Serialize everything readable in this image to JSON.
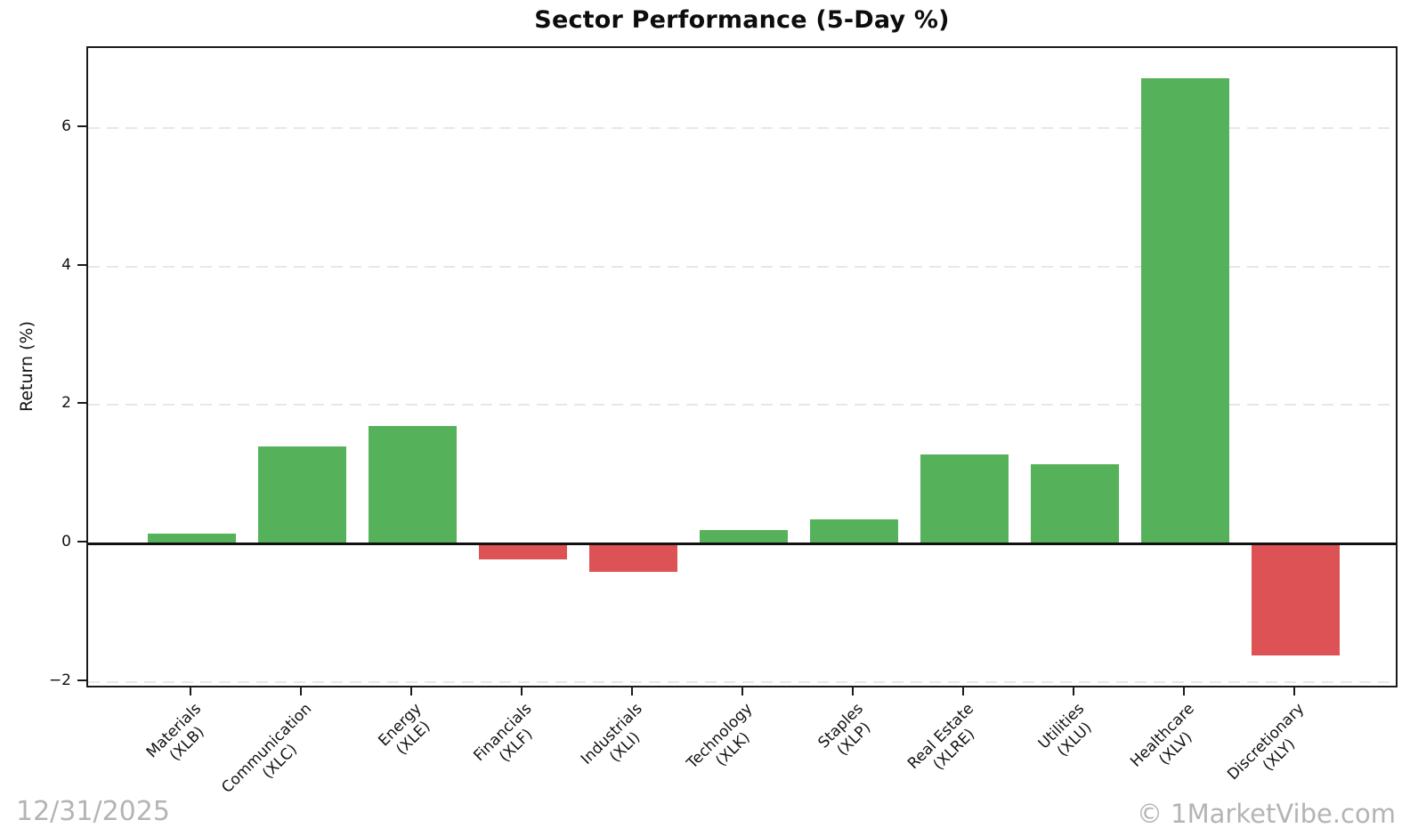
{
  "title": "Sector Performance (5-Day %)",
  "footer": {
    "date": "12/31/2025",
    "watermark": "© 1MarketVibe.com"
  },
  "chart_data": {
    "type": "bar",
    "title": "Sector Performance (5-Day %)",
    "xlabel": "",
    "ylabel": "Return (%)",
    "categories": [
      "Materials\n(XLB)",
      "Communication\n(XLC)",
      "Energy\n(XLE)",
      "Financials\n(XLF)",
      "Industrials\n(XLI)",
      "Technology\n(XLK)",
      "Staples\n(XLP)",
      "Real Estate\n(XLRE)",
      "Utilities\n(XLU)",
      "Healthcare\n(XLV)",
      "Discretionary\n(XLY)"
    ],
    "values": [
      0.15,
      1.4,
      1.7,
      -0.22,
      -0.4,
      0.2,
      0.35,
      1.29,
      1.15,
      6.72,
      -1.6
    ],
    "bar_colors": [
      "#55b25a",
      "#55b25a",
      "#55b25a",
      "#dc5255",
      "#dc5255",
      "#55b25a",
      "#55b25a",
      "#55b25a",
      "#55b25a",
      "#55b25a",
      "#dc5255"
    ],
    "color_positive": "#55b25a",
    "color_negative": "#dc5255",
    "yticks": [
      -2,
      0,
      2,
      4,
      6
    ],
    "ytick_labels": [
      "−2",
      "0",
      "2",
      "4",
      "6"
    ],
    "ylim": [
      -2.1,
      7.15
    ],
    "grid": {
      "axis": "y",
      "style": "dashed",
      "color": "#e7e7e7"
    },
    "zero_line_color": "#111111",
    "legend": "none"
  }
}
